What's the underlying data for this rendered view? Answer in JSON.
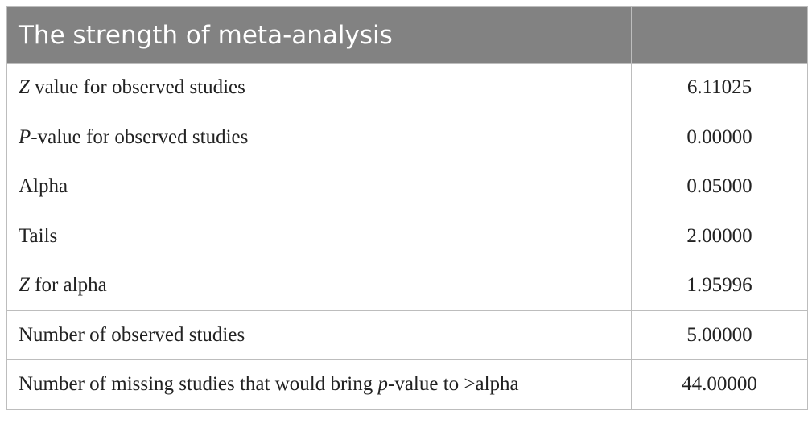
{
  "table": {
    "title": "The strength of meta-analysis",
    "rows": [
      {
        "label": [
          {
            "text": "Z",
            "italic": true
          },
          {
            "text": " value for observed studies"
          }
        ],
        "value": "6.11025"
      },
      {
        "label": [
          {
            "text": "P",
            "italic": true
          },
          {
            "text": "-value for observed studies"
          }
        ],
        "value": "0.00000"
      },
      {
        "label": [
          {
            "text": "Alpha"
          }
        ],
        "value": "0.05000"
      },
      {
        "label": [
          {
            "text": "Tails"
          }
        ],
        "value": "2.00000"
      },
      {
        "label": [
          {
            "text": "Z",
            "italic": true
          },
          {
            "text": " for alpha"
          }
        ],
        "value": "1.95996"
      },
      {
        "label": [
          {
            "text": "Number of observed studies"
          }
        ],
        "value": "5.00000"
      },
      {
        "label": [
          {
            "text": "Number of missing studies that would bring "
          },
          {
            "text": "p",
            "italic": true
          },
          {
            "text": "-value to >alpha"
          }
        ],
        "value": "44.00000"
      }
    ]
  }
}
